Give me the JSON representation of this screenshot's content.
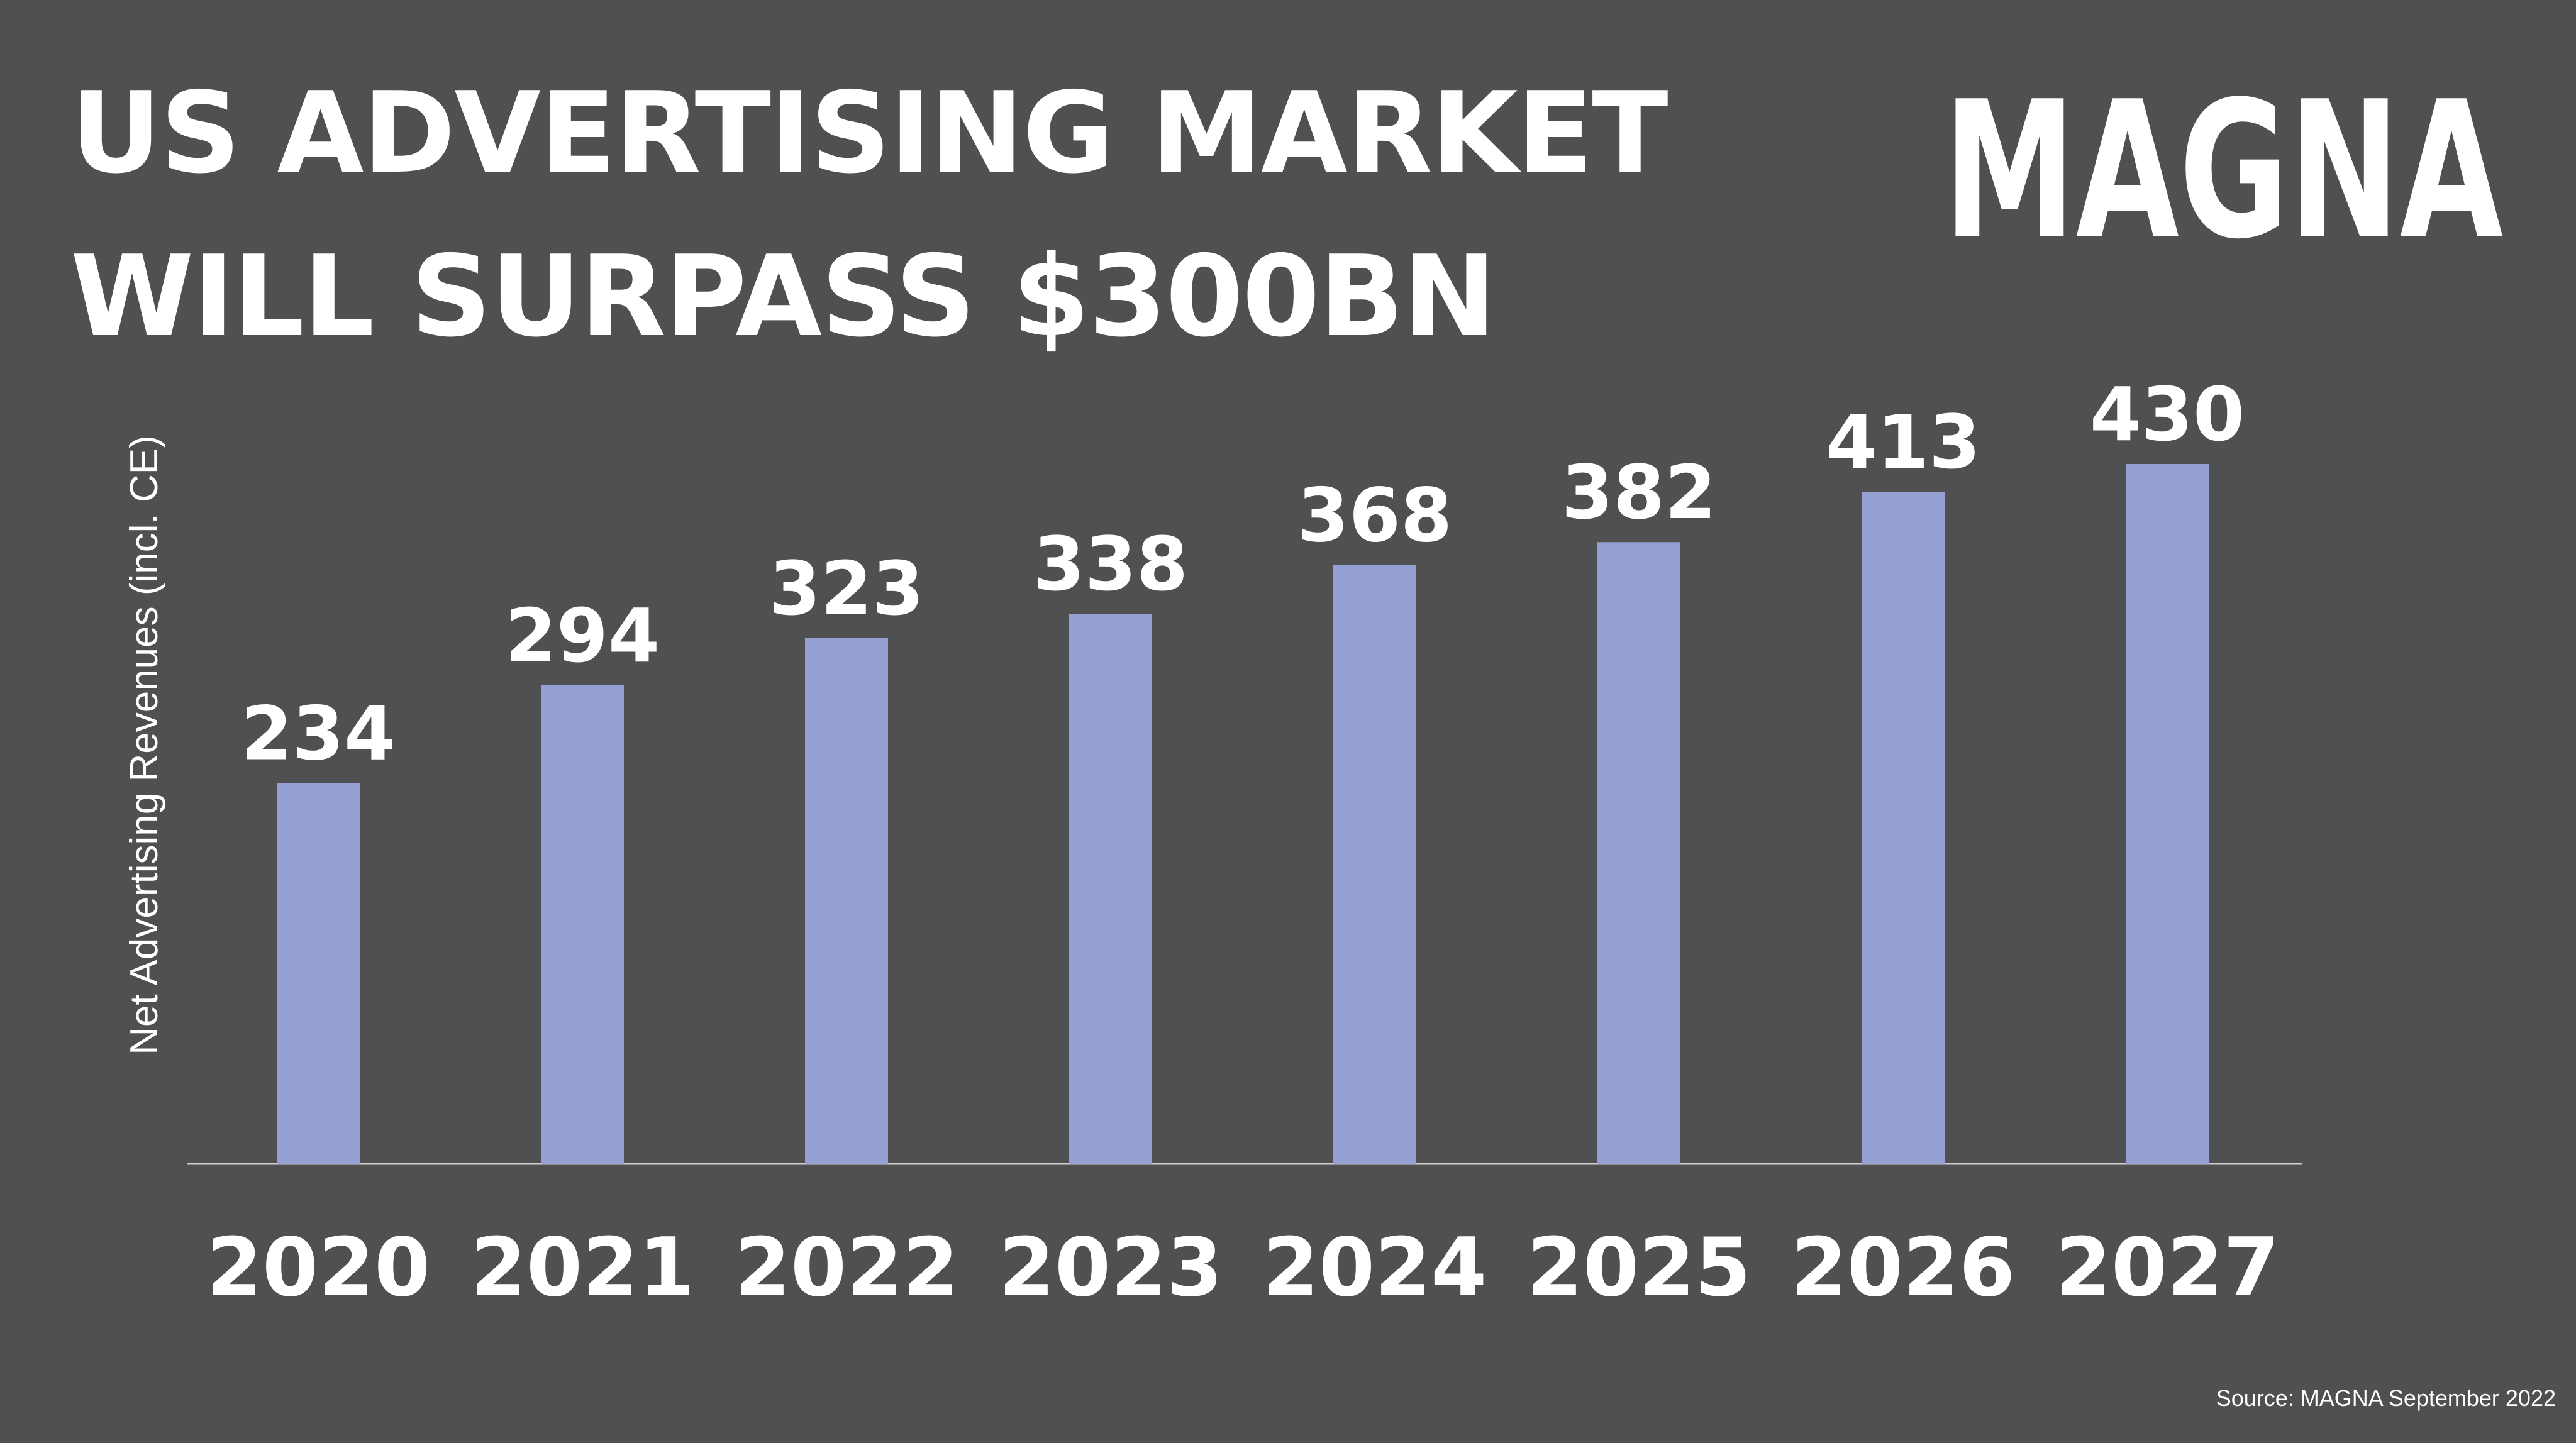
{
  "title_lines": [
    "US ADVERTISING MARKET",
    "WILL SURPASS $300BN"
  ],
  "logo_text": "MAGNA",
  "source": "Source: MAGNA September 2022",
  "colors": {
    "background": "#505050",
    "bar": "#96a0d2",
    "text": "#ffffff",
    "axis": "#d0d0d0"
  },
  "chart_data": {
    "type": "bar",
    "title": "US ADVERTISING MARKET WILL SURPASS $300BN",
    "categories": [
      "2020",
      "2021",
      "2022",
      "2023",
      "2024",
      "2025",
      "2026",
      "2027"
    ],
    "values": [
      234,
      294,
      323,
      338,
      368,
      382,
      413,
      430
    ],
    "xlabel": "",
    "ylabel": "Net Advertising Revenues (incl. CE)",
    "ylim": [
      0,
      430
    ],
    "grid": false,
    "legend": "none",
    "data_labels": true
  }
}
